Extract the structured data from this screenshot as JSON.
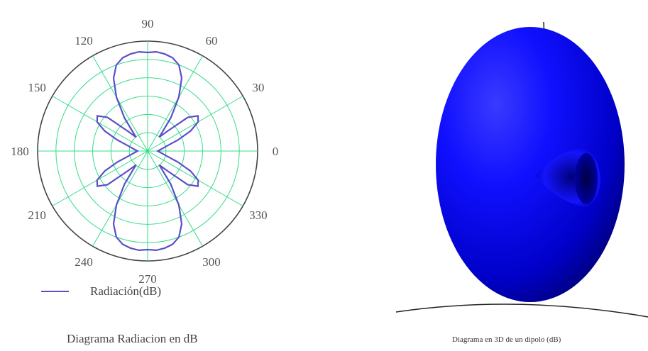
{
  "chart_data": [
    {
      "type": "polar-line",
      "title": "Diagrama Radiacion en dB",
      "angle_ticks": [
        "0",
        "30",
        "60",
        "90",
        "120",
        "150",
        "180",
        "210",
        "240",
        "270",
        "300",
        "330"
      ],
      "legend": [
        "Radiación(dB)"
      ],
      "legend_position": "bottom-left",
      "grid": true,
      "series": [
        {
          "name": "Radiación(dB)",
          "color": "#5a4fc9",
          "theta_deg": [
            0,
            5,
            10,
            15,
            20,
            25,
            30,
            35,
            40,
            45,
            50,
            55,
            60,
            65,
            70,
            75,
            80,
            85,
            90
          ],
          "r_normalized": [
            0.1,
            0.12,
            0.15,
            0.2,
            0.32,
            0.47,
            0.58,
            0.61,
            0.52,
            0.28,
            0.18,
            0.4,
            0.62,
            0.8,
            0.91,
            0.96,
            0.98,
            0.99,
            0.98
          ]
        }
      ],
      "symmetry": "mirrored across both axes"
    },
    {
      "type": "3d-surface",
      "title": "Diagrama en 3D de un dipolo (dB)",
      "surface_color": "#0000ff"
    }
  ],
  "colors": {
    "grid": "#33dd88",
    "curve": "#5a4fc9",
    "surface": "#0000ff"
  }
}
